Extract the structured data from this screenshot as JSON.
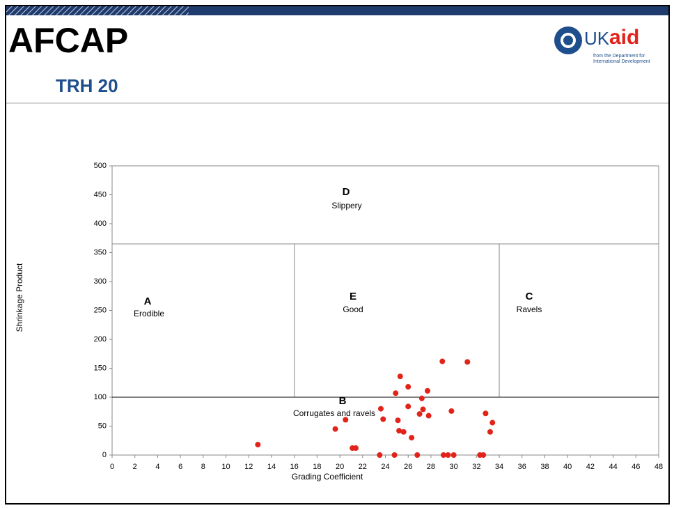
{
  "header": {
    "logo": "AFCAP",
    "subtitle": "TRH 20",
    "brand_uk": "UK",
    "brand_aid": "aid",
    "brand_line1": "from the Department for",
    "brand_line2": "International Development"
  },
  "chart_data": {
    "type": "scatter",
    "x_label": "Grading Coefficient",
    "y_label": "Shrinkage Product",
    "xlim": [
      0,
      48
    ],
    "xticks": [
      0,
      2,
      4,
      6,
      8,
      10,
      12,
      14,
      16,
      18,
      20,
      22,
      24,
      26,
      28,
      30,
      32,
      34,
      36,
      38,
      40,
      42,
      44,
      46,
      48
    ],
    "ylim": [
      0,
      500
    ],
    "yticks": [
      0,
      50,
      100,
      150,
      200,
      250,
      300,
      350,
      400,
      450,
      500
    ],
    "grid": false,
    "color": "#e2231a",
    "zones": {
      "x_bounds": [
        16,
        34
      ],
      "y_low": 100,
      "y_high": 365
    },
    "annotations": [
      {
        "letter": "A",
        "text": "Erodible"
      },
      {
        "letter": "B",
        "text": "Corrugates and ravels"
      },
      {
        "letter": "C",
        "text": "Ravels"
      },
      {
        "letter": "D",
        "text": "Slippery"
      },
      {
        "letter": "E",
        "text": "Good"
      }
    ],
    "x": [
      12.8,
      19.6,
      20.5,
      21.1,
      21.4,
      23.5,
      23.6,
      23.8,
      24.9,
      24.8,
      25.1,
      25.2,
      25.3,
      25.6,
      26.0,
      26.0,
      26.3,
      26.8,
      27.0,
      27.2,
      27.3,
      27.7,
      27.8,
      29.0,
      29.1,
      29.5,
      29.8,
      30.0,
      31.2,
      32.3,
      32.6,
      32.8,
      33.2,
      33.4
    ],
    "values": [
      18,
      45,
      61,
      12,
      12,
      0,
      80,
      62,
      107,
      0,
      60,
      42,
      136,
      40,
      84,
      118,
      30,
      0,
      71,
      98,
      79,
      111,
      68,
      162,
      0,
      0,
      76,
      0,
      161,
      0,
      0,
      72,
      40,
      56
    ]
  }
}
